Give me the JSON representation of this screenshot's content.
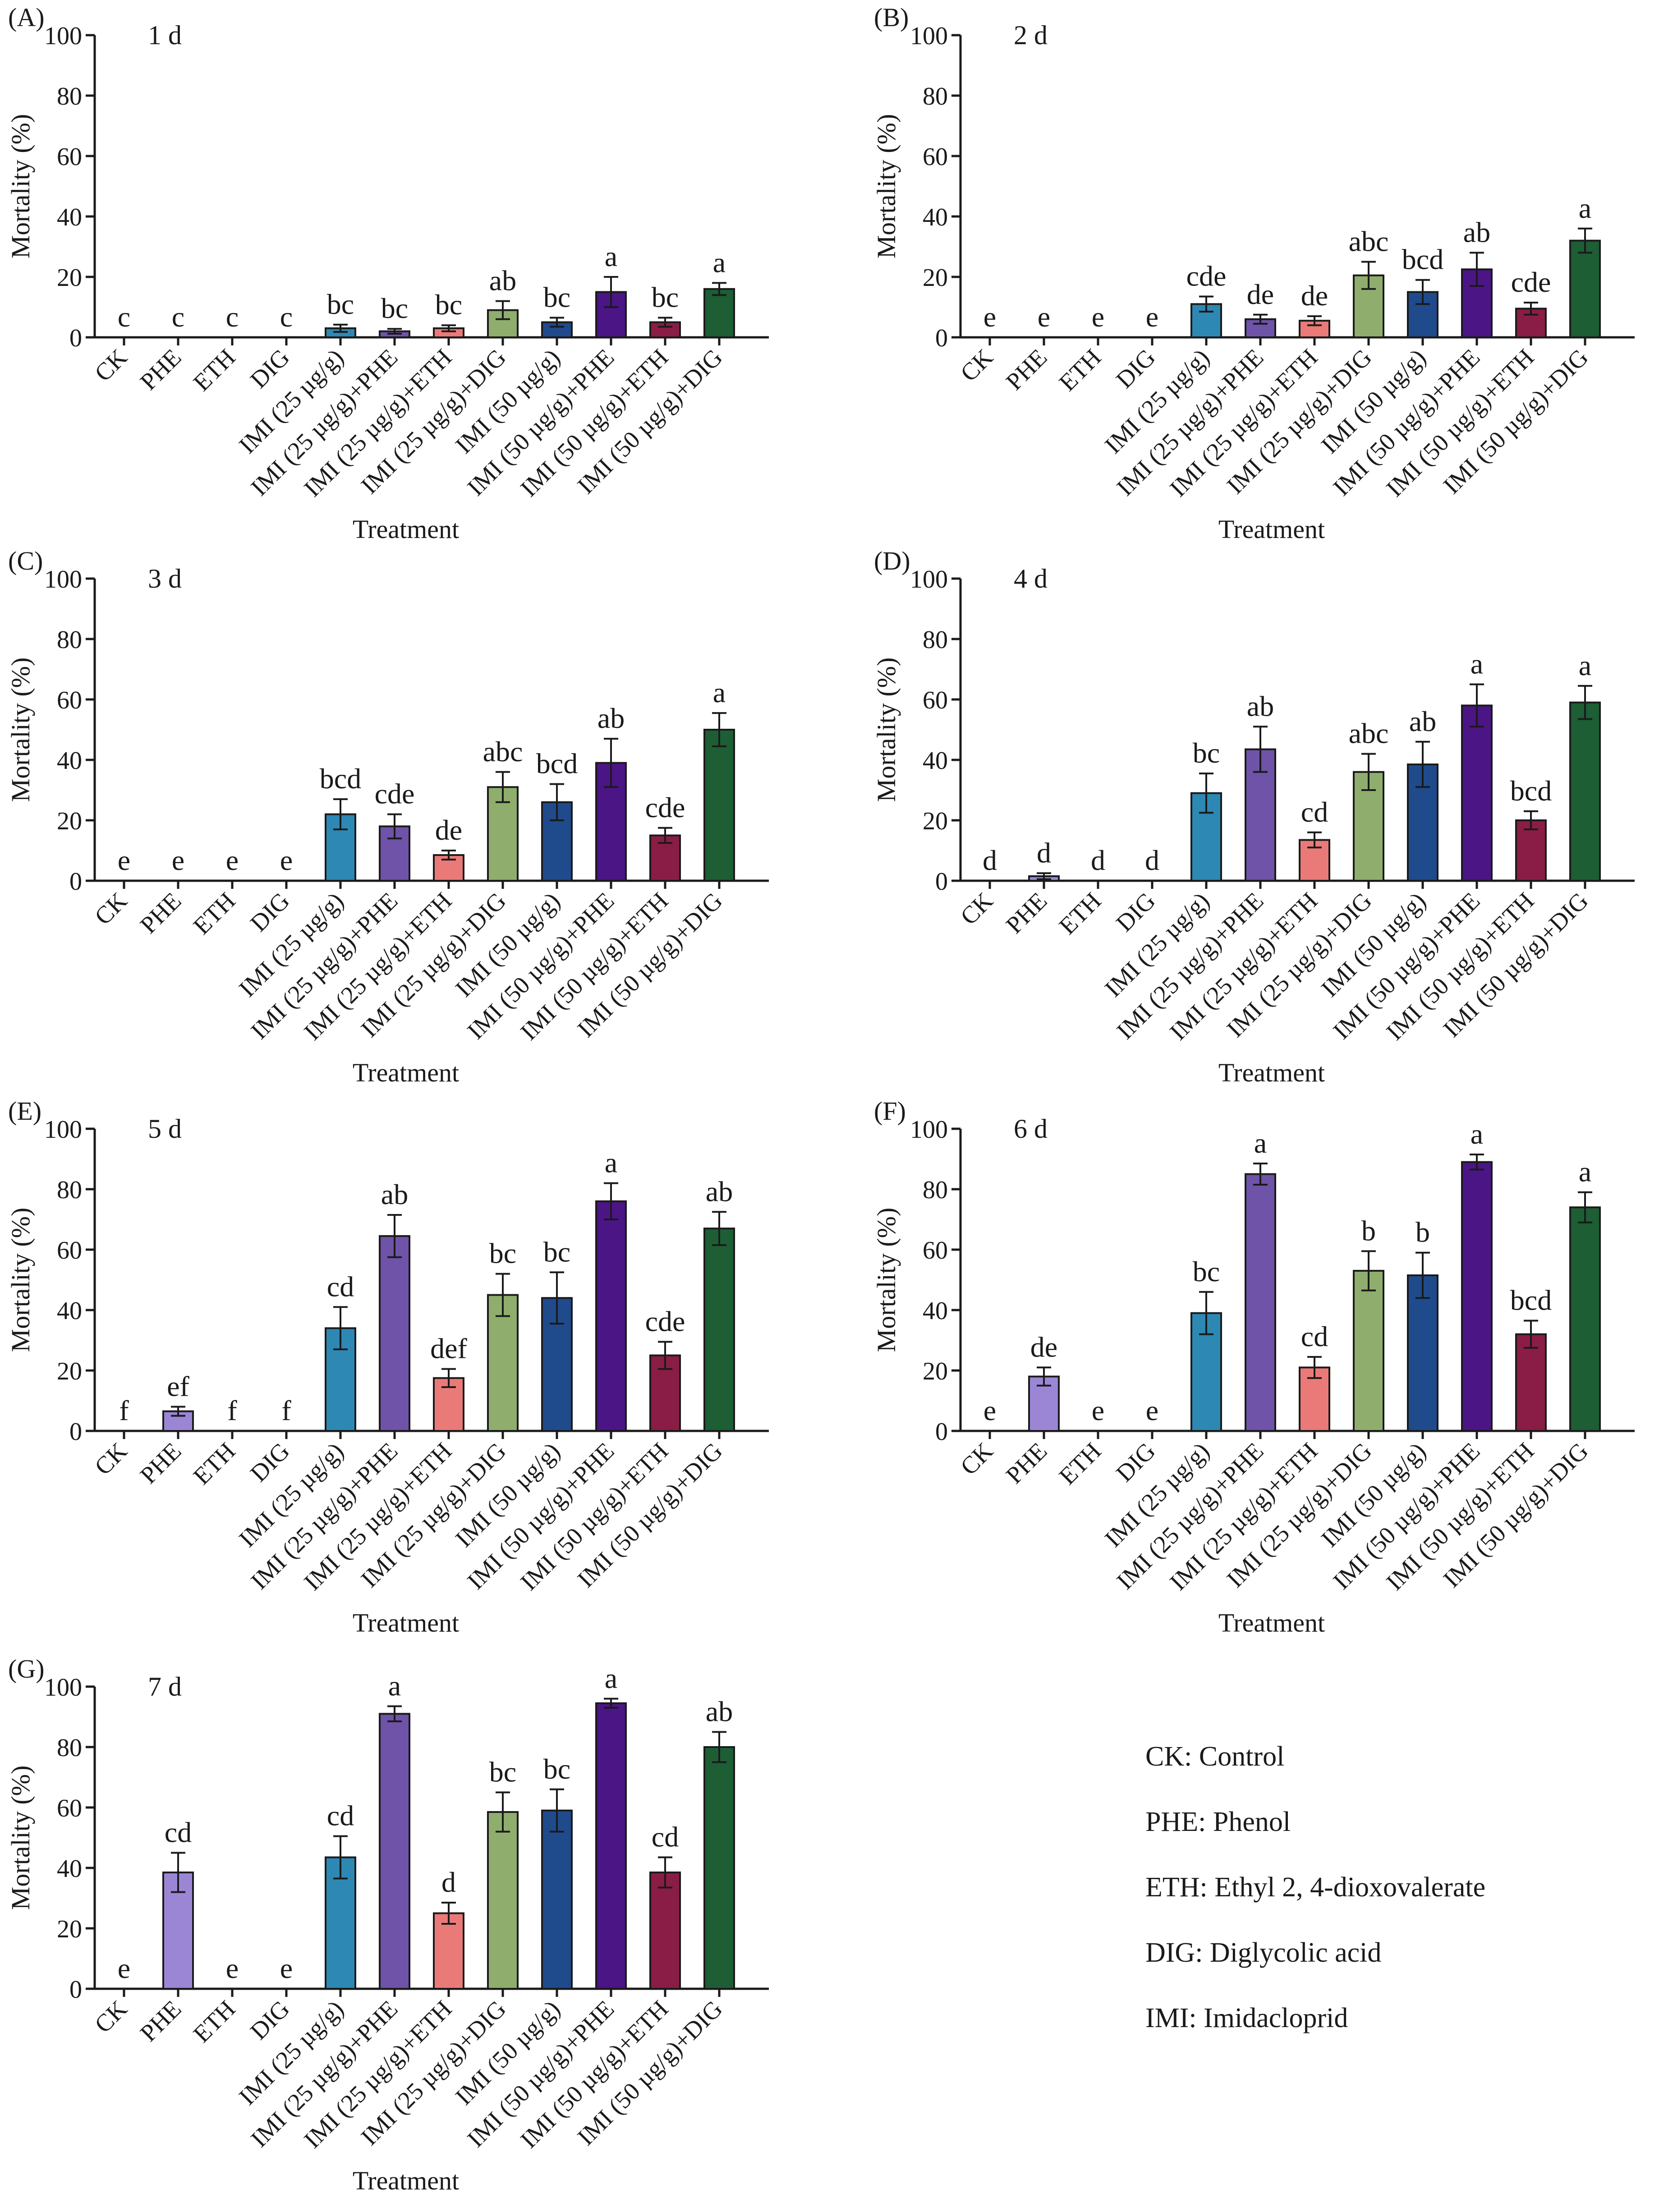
{
  "categories": [
    "CK",
    "PHE",
    "ETH",
    "DIG",
    "IMI (25 µg/g)",
    "IMI (25 µg/g)+PHE",
    "IMI (25 µg/g)+ETH",
    "IMI (25 µg/g)+DIG",
    "IMI (50 µg/g)",
    "IMI (50 µg/g)+PHE",
    "IMI (50 µg/g)+ETH",
    "IMI (50 µg/g)+DIG"
  ],
  "bar_colors": [
    "#9b86d6",
    "#9b86d6",
    "#9b86d6",
    "#9b86d6",
    "#2d88b4",
    "#6e53a8",
    "#ea7a78",
    "#8fae6d",
    "#1f4b8d",
    "#4b1585",
    "#8a1d45",
    "#1d5e34"
  ],
  "legend": [
    "CK: Control",
    "PHE: Phenol",
    "ETH: Ethyl 2, 4-dioxovalerate",
    "DIG: Diglycolic acid",
    "IMI: Imidacloprid"
  ],
  "chart_data": [
    {
      "type": "bar",
      "panel": "(A)",
      "title": "1 d",
      "xlabel": "Treatment",
      "ylabel": "Mortality (%)",
      "ylim": [
        0,
        100
      ],
      "yticks": [
        "0",
        "20",
        "40",
        "60",
        "80",
        "100"
      ],
      "values": [
        0,
        0,
        0,
        0,
        3,
        2,
        3,
        9,
        5,
        15,
        5,
        16
      ],
      "errors": [
        0,
        0,
        0,
        0,
        1.2,
        0.8,
        1,
        3,
        1.5,
        5,
        1.5,
        2
      ],
      "letters": [
        "c",
        "c",
        "c",
        "c",
        "bc",
        "bc",
        "bc",
        "ab",
        "bc",
        "a",
        "bc",
        "a"
      ]
    },
    {
      "type": "bar",
      "panel": "(B)",
      "title": "2 d",
      "xlabel": "Treatment",
      "ylabel": "Mortality (%)",
      "ylim": [
        0,
        100
      ],
      "yticks": [
        "0",
        "20",
        "40",
        "60",
        "80",
        "100"
      ],
      "values": [
        0,
        0,
        0,
        0,
        11,
        6,
        5.5,
        20.5,
        15,
        22.5,
        9.5,
        32
      ],
      "errors": [
        0,
        0,
        0,
        0,
        2.5,
        1.5,
        1.5,
        4.5,
        4,
        5.5,
        2,
        4
      ],
      "letters": [
        "e",
        "e",
        "e",
        "e",
        "cde",
        "de",
        "de",
        "abc",
        "bcd",
        "ab",
        "cde",
        "a"
      ]
    },
    {
      "type": "bar",
      "panel": "(C)",
      "title": "3 d",
      "xlabel": "Treatment",
      "ylabel": "Mortality (%)",
      "ylim": [
        0,
        100
      ],
      "yticks": [
        "0",
        "20",
        "40",
        "60",
        "80",
        "100"
      ],
      "values": [
        0,
        0,
        0,
        0,
        22,
        18,
        8.5,
        31,
        26,
        39,
        15,
        50
      ],
      "errors": [
        0,
        0,
        0,
        0,
        5,
        4,
        1.5,
        5,
        6,
        8,
        2.5,
        5.5
      ],
      "letters": [
        "e",
        "e",
        "e",
        "e",
        "bcd",
        "cde",
        "de",
        "abc",
        "bcd",
        "ab",
        "cde",
        "a"
      ]
    },
    {
      "type": "bar",
      "panel": "(D)",
      "title": "4 d",
      "xlabel": "Treatment",
      "ylabel": "Mortality (%)",
      "ylim": [
        0,
        100
      ],
      "yticks": [
        "0",
        "20",
        "40",
        "60",
        "80",
        "100"
      ],
      "values": [
        0,
        1.5,
        0,
        0,
        29,
        43.5,
        13.5,
        36,
        38.5,
        58,
        20,
        59
      ],
      "errors": [
        0,
        1,
        0,
        0,
        6.5,
        7.5,
        2.5,
        6,
        7.5,
        7,
        3,
        5.5
      ],
      "letters": [
        "d",
        "d",
        "d",
        "d",
        "bc",
        "ab",
        "cd",
        "abc",
        "ab",
        "a",
        "bcd",
        "a"
      ]
    },
    {
      "type": "bar",
      "panel": "(E)",
      "title": "5 d",
      "xlabel": "Treatment",
      "ylabel": "Mortality (%)",
      "ylim": [
        0,
        100
      ],
      "yticks": [
        "0",
        "20",
        "40",
        "60",
        "80",
        "100"
      ],
      "values": [
        0,
        6.5,
        0,
        0,
        34,
        64.5,
        17.5,
        45,
        44,
        76,
        25,
        67
      ],
      "errors": [
        0,
        1.5,
        0,
        0,
        7,
        7,
        3,
        7,
        8.5,
        6,
        4.5,
        5.5
      ],
      "letters": [
        "f",
        "ef",
        "f",
        "f",
        "cd",
        "ab",
        "def",
        "bc",
        "bc",
        "a",
        "cde",
        "ab"
      ]
    },
    {
      "type": "bar",
      "panel": "(F)",
      "title": "6 d",
      "xlabel": "Treatment",
      "ylabel": "Mortality (%)",
      "ylim": [
        0,
        100
      ],
      "yticks": [
        "0",
        "20",
        "40",
        "60",
        "80",
        "100"
      ],
      "values": [
        0,
        18,
        0,
        0,
        39,
        85,
        21,
        53,
        51.5,
        89,
        32,
        74
      ],
      "errors": [
        0,
        3,
        0,
        0,
        7,
        3.5,
        3.5,
        6.5,
        7.5,
        2.5,
        4.5,
        5
      ],
      "letters": [
        "e",
        "de",
        "e",
        "e",
        "bc",
        "a",
        "cd",
        "b",
        "b",
        "a",
        "bcd",
        "a"
      ]
    },
    {
      "type": "bar",
      "panel": "(G)",
      "title": "7 d",
      "xlabel": "Treatment",
      "ylabel": "Mortality (%)",
      "ylim": [
        0,
        100
      ],
      "yticks": [
        "0",
        "20",
        "40",
        "60",
        "80",
        "100"
      ],
      "values": [
        0,
        38.5,
        0,
        0,
        43.5,
        91,
        25,
        58.5,
        59,
        94.5,
        38.5,
        80
      ],
      "errors": [
        0,
        6.5,
        0,
        0,
        7,
        2.5,
        3.5,
        6.5,
        7,
        1.5,
        5,
        5
      ],
      "letters": [
        "e",
        "cd",
        "e",
        "e",
        "cd",
        "a",
        "d",
        "bc",
        "bc",
        "a",
        "cd",
        "ab"
      ]
    }
  ]
}
